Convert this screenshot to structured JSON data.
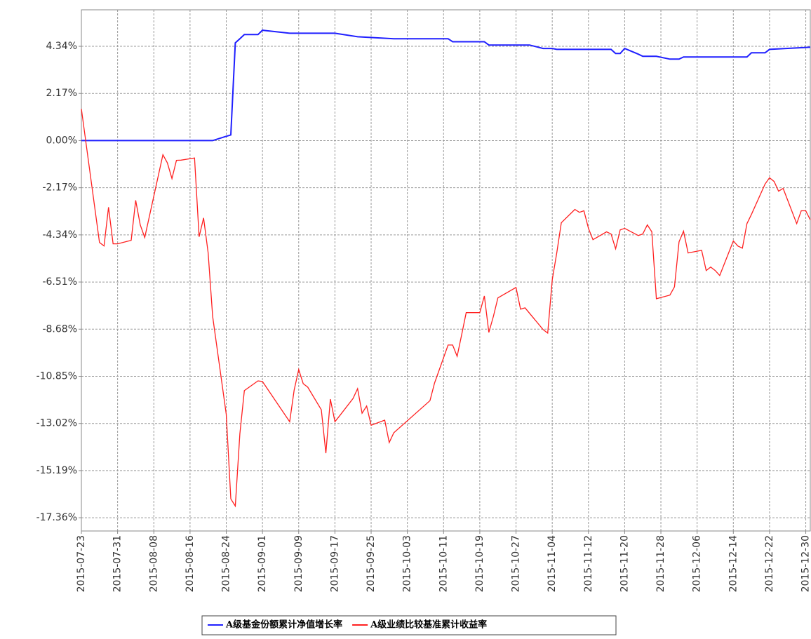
{
  "chart_data": {
    "type": "line",
    "xlim": [
      "2015-07-23",
      "2015-12-31"
    ],
    "xticks": [
      "2015-07-23",
      "2015-07-31",
      "2015-08-08",
      "2015-08-16",
      "2015-08-24",
      "2015-09-01",
      "2015-09-09",
      "2015-09-17",
      "2015-09-25",
      "2015-10-03",
      "2015-10-11",
      "2015-10-19",
      "2015-10-27",
      "2015-11-04",
      "2015-11-12",
      "2015-11-20",
      "2015-11-28",
      "2015-12-06",
      "2015-12-14",
      "2015-12-22",
      "2015-12-30"
    ],
    "ylim": [
      -17.97,
      6.02
    ],
    "yticks": [
      {
        "value": 4.34,
        "label": "4.34%"
      },
      {
        "value": 2.17,
        "label": "2.17%"
      },
      {
        "value": 0,
        "label": "0.00%"
      },
      {
        "value": -2.17,
        "label": "-2.17%"
      },
      {
        "value": -4.34,
        "label": "-4.34%"
      },
      {
        "value": -6.51,
        "label": "-6.51%"
      },
      {
        "value": -8.68,
        "label": "-8.68%"
      },
      {
        "value": -10.85,
        "label": "-10.85%"
      },
      {
        "value": -13.02,
        "label": "-13.02%"
      },
      {
        "value": -15.19,
        "label": "-15.19%"
      },
      {
        "value": -17.36,
        "label": "-17.36%"
      }
    ],
    "grid": true,
    "legend": "bottom",
    "series": [
      {
        "name": "A级基金份额累计净值增长率",
        "color": "#1f1fff",
        "x": [
          "2015-07-23",
          "2015-08-21",
          "2015-08-24",
          "2015-08-25",
          "2015-08-26",
          "2015-08-27",
          "2015-08-28",
          "2015-08-31",
          "2015-09-01",
          "2015-09-07",
          "2015-09-17",
          "2015-09-22",
          "2015-09-30",
          "2015-10-12",
          "2015-10-13",
          "2015-10-20",
          "2015-10-21",
          "2015-10-30",
          "2015-11-02",
          "2015-11-04",
          "2015-11-05",
          "2015-11-17",
          "2015-11-18",
          "2015-11-19",
          "2015-11-20",
          "2015-11-23",
          "2015-11-24",
          "2015-11-27",
          "2015-11-30",
          "2015-12-02",
          "2015-12-03",
          "2015-12-17",
          "2015-12-18",
          "2015-12-21",
          "2015-12-22",
          "2015-12-31"
        ],
        "values": [
          0,
          0,
          0.2,
          0.26,
          4.5,
          4.69,
          4.88,
          4.88,
          5.08,
          4.94,
          4.94,
          4.78,
          4.69,
          4.69,
          4.55,
          4.55,
          4.4,
          4.4,
          4.24,
          4.24,
          4.2,
          4.2,
          4.01,
          4.01,
          4.24,
          3.98,
          3.88,
          3.88,
          3.75,
          3.75,
          3.85,
          3.85,
          4.04,
          4.04,
          4.2,
          4.3
        ]
      },
      {
        "name": "A级业绩比较基准累计收益率",
        "color": "#ff2020",
        "x": [
          "2015-07-23",
          "2015-07-27",
          "2015-07-28",
          "2015-07-29",
          "2015-07-30",
          "2015-07-31",
          "2015-08-03",
          "2015-08-04",
          "2015-08-05",
          "2015-08-06",
          "2015-08-10",
          "2015-08-11",
          "2015-08-12",
          "2015-08-13",
          "2015-08-14",
          "2015-08-17",
          "2015-08-18",
          "2015-08-19",
          "2015-08-20",
          "2015-08-21",
          "2015-08-24",
          "2015-08-25",
          "2015-08-26",
          "2015-08-27",
          "2015-08-28",
          "2015-08-31",
          "2015-09-01",
          "2015-09-02",
          "2015-09-07",
          "2015-09-08",
          "2015-09-09",
          "2015-09-10",
          "2015-09-11",
          "2015-09-14",
          "2015-09-15",
          "2015-09-16",
          "2015-09-17",
          "2015-09-18",
          "2015-09-21",
          "2015-09-22",
          "2015-09-23",
          "2015-09-24",
          "2015-09-25",
          "2015-09-28",
          "2015-09-29",
          "2015-09-30",
          "2015-10-08",
          "2015-10-09",
          "2015-10-12",
          "2015-10-13",
          "2015-10-14",
          "2015-10-15",
          "2015-10-16",
          "2015-10-19",
          "2015-10-20",
          "2015-10-21",
          "2015-10-22",
          "2015-10-23",
          "2015-10-27",
          "2015-10-28",
          "2015-10-29",
          "2015-11-02",
          "2015-11-03",
          "2015-11-04",
          "2015-11-05",
          "2015-11-06",
          "2015-11-09",
          "2015-11-10",
          "2015-11-11",
          "2015-11-12",
          "2015-11-13",
          "2015-11-16",
          "2015-11-17",
          "2015-11-18",
          "2015-11-19",
          "2015-11-20",
          "2015-11-23",
          "2015-11-24",
          "2015-11-25",
          "2015-11-26",
          "2015-11-27",
          "2015-11-30",
          "2015-12-01",
          "2015-12-02",
          "2015-12-03",
          "2015-12-04",
          "2015-12-07",
          "2015-12-08",
          "2015-12-09",
          "2015-12-10",
          "2015-12-11",
          "2015-12-14",
          "2015-12-15",
          "2015-12-16",
          "2015-12-17",
          "2015-12-18",
          "2015-12-21",
          "2015-12-22",
          "2015-12-23",
          "2015-12-24",
          "2015-12-25",
          "2015-12-28",
          "2015-12-29",
          "2015-12-30",
          "2015-12-31"
        ],
        "values": [
          1.46,
          -4.69,
          -4.85,
          -3.07,
          -4.75,
          -4.75,
          -4.59,
          -2.75,
          -3.88,
          -4.46,
          -0.65,
          -1.03,
          -1.75,
          -0.91,
          -0.9,
          -0.8,
          -4.43,
          -3.56,
          -5.17,
          -8.09,
          -12.6,
          -16.49,
          -16.82,
          -13.5,
          -11.51,
          -11.06,
          -11.09,
          -11.4,
          -12.94,
          -11.48,
          -10.54,
          -11.19,
          -11.35,
          -12.39,
          -14.39,
          -11.9,
          -12.94,
          -12.68,
          -11.87,
          -11.42,
          -12.55,
          -12.22,
          -13.1,
          -12.87,
          -13.9,
          -13.45,
          -11.97,
          -11.16,
          -9.41,
          -9.41,
          -9.93,
          -8.93,
          -7.92,
          -7.92,
          -7.15,
          -8.83,
          -8.09,
          -7.24,
          -6.76,
          -7.76,
          -7.7,
          -8.7,
          -8.86,
          -6.4,
          -5.17,
          -3.78,
          -3.17,
          -3.3,
          -3.23,
          -4.04,
          -4.56,
          -4.2,
          -4.3,
          -4.98,
          -4.11,
          -4.04,
          -4.37,
          -4.3,
          -3.88,
          -4.2,
          -7.28,
          -7.11,
          -6.73,
          -4.66,
          -4.17,
          -5.17,
          -5.05,
          -5.98,
          -5.82,
          -5.98,
          -6.21,
          -4.62,
          -4.85,
          -4.95,
          -3.82,
          -3.4,
          -2.0,
          -1.71,
          -1.88,
          -2.33,
          -2.2,
          -3.82,
          -3.23,
          -3.23,
          -3.65
        ]
      }
    ]
  }
}
